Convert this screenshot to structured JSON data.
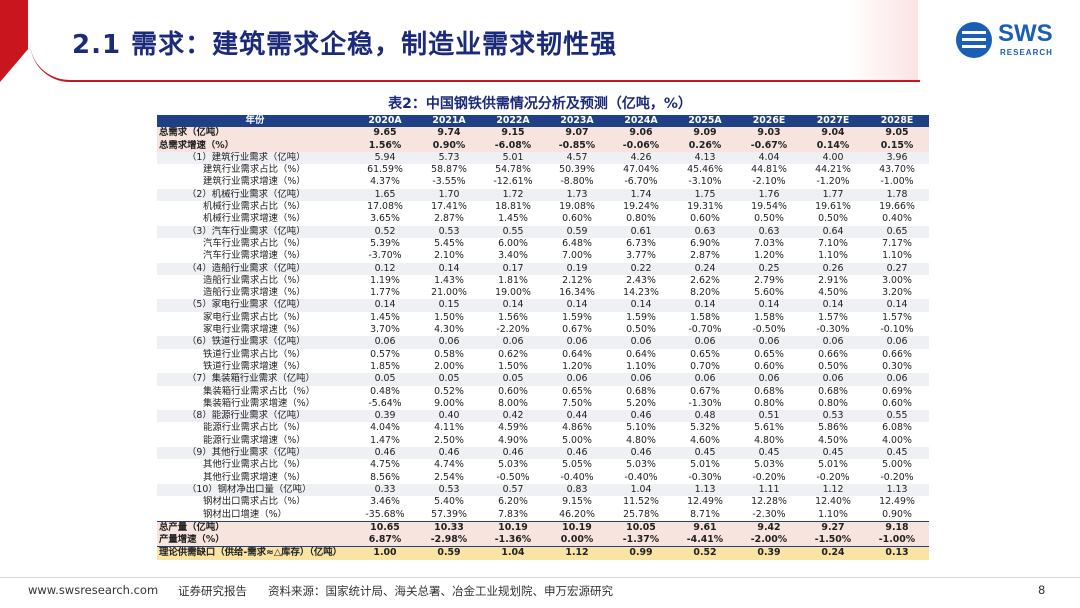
{
  "header": {
    "title": "2.1 需求：建筑需求企稳，制造业需求韧性强",
    "logo_text": "SWS",
    "logo_sub": "RESEARCH"
  },
  "table": {
    "title": "表2：中国钢铁供需情况分析及预测（亿吨，%）",
    "columns": [
      "年份",
      "2020A",
      "2021A",
      "2022A",
      "2023A",
      "2024A",
      "2025A",
      "2026E",
      "2027E",
      "2028E"
    ],
    "rows": [
      {
        "label": "总需求（亿吨）",
        "values": [
          "9.65",
          "9.74",
          "9.15",
          "9.07",
          "9.06",
          "9.09",
          "9.03",
          "9.04",
          "9.05"
        ]
      },
      {
        "label": "总需求增速（%）",
        "values": [
          "1.56%",
          "0.90%",
          "-6.08%",
          "-0.85%",
          "-0.06%",
          "0.26%",
          "-0.67%",
          "0.14%",
          "0.15%"
        ]
      },
      {
        "label": "（1）建筑行业需求（亿吨）",
        "values": [
          "5.94",
          "5.73",
          "5.01",
          "4.57",
          "4.26",
          "4.13",
          "4.04",
          "4.00",
          "3.96"
        ]
      },
      {
        "label": "建筑行业需求占比（%）",
        "values": [
          "61.59%",
          "58.87%",
          "54.78%",
          "50.39%",
          "47.04%",
          "45.46%",
          "44.81%",
          "44.21%",
          "43.70%"
        ]
      },
      {
        "label": "建筑行业需求增速（%）",
        "values": [
          "4.37%",
          "-3.55%",
          "-12.61%",
          "-8.80%",
          "-6.70%",
          "-3.10%",
          "-2.10%",
          "-1.20%",
          "-1.00%"
        ]
      },
      {
        "label": "（2）机械行业需求（亿吨）",
        "values": [
          "1.65",
          "1.70",
          "1.72",
          "1.73",
          "1.74",
          "1.75",
          "1.76",
          "1.77",
          "1.78"
        ]
      },
      {
        "label": "机械行业需求占比（%）",
        "values": [
          "17.08%",
          "17.41%",
          "18.81%",
          "19.08%",
          "19.24%",
          "19.31%",
          "19.54%",
          "19.61%",
          "19.66%"
        ]
      },
      {
        "label": "机械行业需求增速（%）",
        "values": [
          "3.65%",
          "2.87%",
          "1.45%",
          "0.60%",
          "0.80%",
          "0.60%",
          "0.50%",
          "0.50%",
          "0.40%"
        ]
      },
      {
        "label": "（3）汽车行业需求（亿吨）",
        "values": [
          "0.52",
          "0.53",
          "0.55",
          "0.59",
          "0.61",
          "0.63",
          "0.63",
          "0.64",
          "0.65"
        ]
      },
      {
        "label": "汽车行业需求占比（%）",
        "values": [
          "5.39%",
          "5.45%",
          "6.00%",
          "6.48%",
          "6.73%",
          "6.90%",
          "7.03%",
          "7.10%",
          "7.17%"
        ]
      },
      {
        "label": "汽车行业需求增速（%）",
        "values": [
          "-3.70%",
          "2.10%",
          "3.40%",
          "7.00%",
          "3.77%",
          "2.87%",
          "1.20%",
          "1.10%",
          "1.10%"
        ]
      },
      {
        "label": "（4）造船行业需求（亿吨）",
        "values": [
          "0.12",
          "0.14",
          "0.17",
          "0.19",
          "0.22",
          "0.24",
          "0.25",
          "0.26",
          "0.27"
        ]
      },
      {
        "label": "造船行业需求占比（%）",
        "values": [
          "1.19%",
          "1.43%",
          "1.81%",
          "2.12%",
          "2.43%",
          "2.62%",
          "2.79%",
          "2.91%",
          "3.00%"
        ]
      },
      {
        "label": "造船行业需求增速（%）",
        "values": [
          "1.77%",
          "21.00%",
          "19.00%",
          "16.34%",
          "14.23%",
          "8.20%",
          "5.60%",
          "4.50%",
          "3.20%"
        ]
      },
      {
        "label": "（5）家电行业需求（亿吨）",
        "values": [
          "0.14",
          "0.15",
          "0.14",
          "0.14",
          "0.14",
          "0.14",
          "0.14",
          "0.14",
          "0.14"
        ]
      },
      {
        "label": "家电行业需求占比（%）",
        "values": [
          "1.45%",
          "1.50%",
          "1.56%",
          "1.59%",
          "1.59%",
          "1.58%",
          "1.58%",
          "1.57%",
          "1.57%"
        ]
      },
      {
        "label": "家电行业需求增速（%）",
        "values": [
          "3.70%",
          "4.30%",
          "-2.20%",
          "0.67%",
          "0.50%",
          "-0.70%",
          "-0.50%",
          "-0.30%",
          "-0.10%"
        ]
      },
      {
        "label": "（6）铁道行业需求（亿吨）",
        "values": [
          "0.06",
          "0.06",
          "0.06",
          "0.06",
          "0.06",
          "0.06",
          "0.06",
          "0.06",
          "0.06"
        ]
      },
      {
        "label": "铁道行业需求占比（%）",
        "values": [
          "0.57%",
          "0.58%",
          "0.62%",
          "0.64%",
          "0.64%",
          "0.65%",
          "0.65%",
          "0.66%",
          "0.66%"
        ]
      },
      {
        "label": "铁道行业需求增速（%）",
        "values": [
          "1.85%",
          "2.00%",
          "1.50%",
          "1.20%",
          "1.10%",
          "0.70%",
          "0.60%",
          "0.50%",
          "0.30%"
        ]
      },
      {
        "label": "（7）集装箱行业需求（亿吨）",
        "values": [
          "0.05",
          "0.05",
          "0.05",
          "0.06",
          "0.06",
          "0.06",
          "0.06",
          "0.06",
          "0.06"
        ]
      },
      {
        "label": "集装箱行业需求占比（%）",
        "values": [
          "0.48%",
          "0.52%",
          "0.60%",
          "0.65%",
          "0.68%",
          "0.67%",
          "0.68%",
          "0.68%",
          "0.69%"
        ]
      },
      {
        "label": "集装箱行业需求增速（%）",
        "values": [
          "-5.64%",
          "9.00%",
          "8.00%",
          "7.50%",
          "5.20%",
          "-1.30%",
          "0.80%",
          "0.80%",
          "0.60%"
        ]
      },
      {
        "label": "（8）能源行业需求（亿吨）",
        "values": [
          "0.39",
          "0.40",
          "0.42",
          "0.44",
          "0.46",
          "0.48",
          "0.51",
          "0.53",
          "0.55"
        ]
      },
      {
        "label": "能源行业需求占比（%）",
        "values": [
          "4.04%",
          "4.11%",
          "4.59%",
          "4.86%",
          "5.10%",
          "5.32%",
          "5.61%",
          "5.86%",
          "6.08%"
        ]
      },
      {
        "label": "能源行业需求增速（%）",
        "values": [
          "1.47%",
          "2.50%",
          "4.90%",
          "5.00%",
          "4.80%",
          "4.60%",
          "4.80%",
          "4.50%",
          "4.00%"
        ]
      },
      {
        "label": "（9）其他行业需求（亿吨）",
        "values": [
          "0.46",
          "0.46",
          "0.46",
          "0.46",
          "0.46",
          "0.45",
          "0.45",
          "0.45",
          "0.45"
        ]
      },
      {
        "label": "其他行业需求占比（%）",
        "values": [
          "4.75%",
          "4.74%",
          "5.03%",
          "5.05%",
          "5.03%",
          "5.01%",
          "5.03%",
          "5.01%",
          "5.00%"
        ]
      },
      {
        "label": "其他行业需求增速（%）",
        "values": [
          "8.56%",
          "2.54%",
          "-0.50%",
          "-0.40%",
          "-0.40%",
          "-0.30%",
          "-0.20%",
          "-0.20%",
          "-0.20%"
        ]
      },
      {
        "label": "（10）钢材净出口量（亿吨）",
        "values": [
          "0.33",
          "0.53",
          "0.57",
          "0.83",
          "1.04",
          "1.13",
          "1.11",
          "1.12",
          "1.13"
        ]
      },
      {
        "label": "钢材出口需求占比（%）",
        "values": [
          "3.46%",
          "5.40%",
          "6.20%",
          "9.15%",
          "11.52%",
          "12.49%",
          "12.28%",
          "12.40%",
          "12.49%"
        ]
      },
      {
        "label": "钢材出口增速（%）",
        "values": [
          "-35.68%",
          "57.39%",
          "7.83%",
          "46.20%",
          "25.78%",
          "8.71%",
          "-2.30%",
          "1.10%",
          "0.90%"
        ]
      },
      {
        "label": "总产量（亿吨）",
        "values": [
          "10.65",
          "10.33",
          "10.19",
          "10.19",
          "10.05",
          "9.61",
          "9.42",
          "9.27",
          "9.18"
        ]
      },
      {
        "label": "产量增速（%）",
        "values": [
          "6.87%",
          "-2.98%",
          "-1.36%",
          "0.00%",
          "-1.37%",
          "-4.41%",
          "-2.00%",
          "-1.50%",
          "-1.00%"
        ]
      },
      {
        "label": "理论供需缺口（供给-需求≈△库存）（亿吨）",
        "values": [
          "1.00",
          "0.59",
          "1.04",
          "1.12",
          "0.99",
          "0.52",
          "0.39",
          "0.24",
          "0.13"
        ]
      }
    ]
  },
  "footer": {
    "url": "www.swsresearch.com",
    "label": "证券研究报告",
    "source": "资料来源：国家统计局、海关总署、冶金工业规划院、申万宏源研究",
    "page": "8"
  }
}
